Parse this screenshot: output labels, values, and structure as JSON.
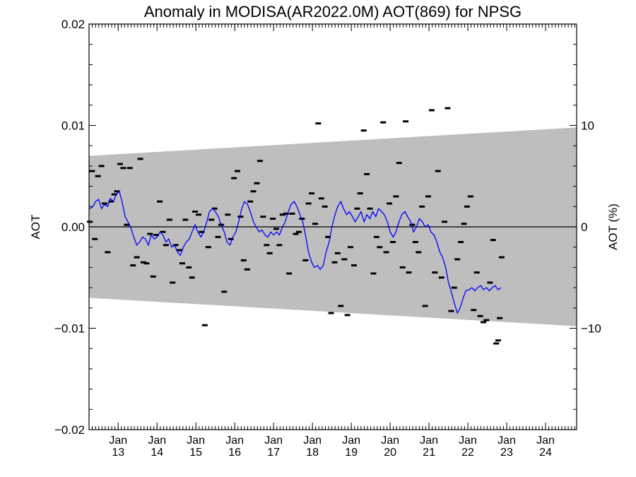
{
  "chart_data": {
    "type": "scatter",
    "title": "Anomaly in MODISA(AR2022.0M) AOT(869) for NPSG",
    "ylabel": "AOT",
    "ylabel_right": "AOT (%)",
    "xlim": [
      2012.25,
      2024.8
    ],
    "ylim": [
      -0.02,
      0.02
    ],
    "ylim_right": [
      -20,
      20
    ],
    "yticks": [
      {
        "v": 0.02,
        "label": "0.02"
      },
      {
        "v": 0.01,
        "label": "0.01"
      },
      {
        "v": 0.0,
        "label": "0.00"
      },
      {
        "v": -0.01,
        "label": "−0.01"
      },
      {
        "v": -0.02,
        "label": "−0.02"
      }
    ],
    "yticks_right": [
      {
        "v": 10,
        "label": "10"
      },
      {
        "v": 0,
        "label": "0"
      },
      {
        "v": -10,
        "label": "−10"
      }
    ],
    "xticks": [
      {
        "v": 2013.0,
        "month": "Jan",
        "year": "13"
      },
      {
        "v": 2014.0,
        "month": "Jan",
        "year": "14"
      },
      {
        "v": 2015.0,
        "month": "Jan",
        "year": "15"
      },
      {
        "v": 2016.0,
        "month": "Jan",
        "year": "16"
      },
      {
        "v": 2017.0,
        "month": "Jan",
        "year": "17"
      },
      {
        "v": 2018.0,
        "month": "Jan",
        "year": "18"
      },
      {
        "v": 2019.0,
        "month": "Jan",
        "year": "19"
      },
      {
        "v": 2020.0,
        "month": "Jan",
        "year": "20"
      },
      {
        "v": 2021.0,
        "month": "Jan",
        "year": "21"
      },
      {
        "v": 2022.0,
        "month": "Jan",
        "year": "22"
      },
      {
        "v": 2023.0,
        "month": "Jan",
        "year": "23"
      },
      {
        "v": 2024.0,
        "month": "Jan",
        "year": "24"
      }
    ],
    "band": {
      "x": [
        2012.25,
        2024.8
      ],
      "upper": [
        0.007,
        0.0098
      ],
      "lower": [
        -0.007,
        -0.0098
      ],
      "color": "#bebebe"
    },
    "zero_line": 0.0,
    "series": [
      {
        "kind": "markers",
        "color": "#000000",
        "points": [
          [
            2012.27,
            0.0005
          ],
          [
            2012.33,
            0.0055
          ],
          [
            2012.4,
            -0.0012
          ],
          [
            2012.48,
            0.005
          ],
          [
            2012.57,
            0.006
          ],
          [
            2012.65,
            0.0023
          ],
          [
            2012.73,
            -0.0025
          ],
          [
            2012.82,
            0.0025
          ],
          [
            2012.9,
            0.0032
          ],
          [
            2012.97,
            0.0035
          ],
          [
            2013.05,
            0.0062
          ],
          [
            2013.13,
            0.0058
          ],
          [
            2013.22,
            0.0002
          ],
          [
            2013.3,
            0.0058
          ],
          [
            2013.38,
            -0.0038
          ],
          [
            2013.48,
            -0.003
          ],
          [
            2013.57,
            0.0067
          ],
          [
            2013.65,
            -0.0035
          ],
          [
            2013.73,
            -0.0036
          ],
          [
            2013.82,
            -0.0007
          ],
          [
            2013.9,
            -0.0049
          ],
          [
            2013.98,
            -0.0008
          ],
          [
            2014.07,
            0.0025
          ],
          [
            2014.15,
            -0.0005
          ],
          [
            2014.23,
            -0.0018
          ],
          [
            2014.32,
            0.0007
          ],
          [
            2014.4,
            -0.0055
          ],
          [
            2014.48,
            -0.0018
          ],
          [
            2014.57,
            -0.0023
          ],
          [
            2014.65,
            -0.0036
          ],
          [
            2014.73,
            0.0007
          ],
          [
            2014.82,
            -0.004
          ],
          [
            2014.9,
            -0.005
          ],
          [
            2014.98,
            0.0015
          ],
          [
            2015.07,
            0.0012
          ],
          [
            2015.15,
            -0.0005
          ],
          [
            2015.23,
            -0.0097
          ],
          [
            2015.32,
            -0.002
          ],
          [
            2015.4,
            0.0007
          ],
          [
            2015.48,
            0.0018
          ],
          [
            2015.57,
            -0.001
          ],
          [
            2015.65,
            0.0002
          ],
          [
            2015.73,
            -0.0064
          ],
          [
            2015.82,
            0.0012
          ],
          [
            2015.9,
            -0.0012
          ],
          [
            2015.98,
            0.0048
          ],
          [
            2016.07,
            0.0055
          ],
          [
            2016.15,
            0.001
          ],
          [
            2016.23,
            -0.0033
          ],
          [
            2016.32,
            -0.0042
          ],
          [
            2016.4,
            0.0025
          ],
          [
            2016.48,
            0.0035
          ],
          [
            2016.57,
            0.0043
          ],
          [
            2016.65,
            0.0065
          ],
          [
            2016.73,
            0.001
          ],
          [
            2016.82,
            -0.0018
          ],
          [
            2016.9,
            -0.0026
          ],
          [
            2016.98,
            0.0008
          ],
          [
            2017.07,
            -0.0002
          ],
          [
            2017.15,
            -0.0018
          ],
          [
            2017.23,
            0.0012
          ],
          [
            2017.32,
            0.0013
          ],
          [
            2017.4,
            -0.0046
          ],
          [
            2017.48,
            0.0013
          ],
          [
            2017.57,
            -0.0007
          ],
          [
            2017.65,
            -0.0005
          ],
          [
            2017.73,
            0.0008
          ],
          [
            2017.82,
            -0.0033
          ],
          [
            2017.9,
            0.0023
          ],
          [
            2017.98,
            0.0033
          ],
          [
            2018.07,
            0.0003
          ],
          [
            2018.15,
            0.0102
          ],
          [
            2018.23,
            0.0028
          ],
          [
            2018.32,
            0.002
          ],
          [
            2018.4,
            -0.001
          ],
          [
            2018.48,
            -0.0085
          ],
          [
            2018.57,
            -0.0035
          ],
          [
            2018.65,
            -0.0026
          ],
          [
            2018.73,
            -0.0078
          ],
          [
            2018.82,
            -0.0032
          ],
          [
            2018.9,
            -0.0087
          ],
          [
            2018.98,
            -0.002
          ],
          [
            2019.07,
            -0.0038
          ],
          [
            2019.15,
            0.0018
          ],
          [
            2019.23,
            0.0033
          ],
          [
            2019.32,
            0.0095
          ],
          [
            2019.4,
            0.0052
          ],
          [
            2019.48,
            0.0018
          ],
          [
            2019.57,
            -0.0046
          ],
          [
            2019.65,
            -0.001
          ],
          [
            2019.73,
            -0.002
          ],
          [
            2019.82,
            0.0103
          ],
          [
            2019.9,
            -0.0025
          ],
          [
            2019.98,
            0.0023
          ],
          [
            2020.07,
            -0.0015
          ],
          [
            2020.15,
            0.003
          ],
          [
            2020.23,
            0.0063
          ],
          [
            2020.32,
            -0.004
          ],
          [
            2020.4,
            0.0104
          ],
          [
            2020.48,
            -0.0045
          ],
          [
            2020.57,
            0.0002
          ],
          [
            2020.65,
            -0.0015
          ],
          [
            2020.73,
            -0.0025
          ],
          [
            2020.82,
            0.002
          ],
          [
            2020.9,
            -0.0078
          ],
          [
            2020.98,
            0.003
          ],
          [
            2021.07,
            0.0115
          ],
          [
            2021.15,
            -0.0045
          ],
          [
            2021.23,
            0.0055
          ],
          [
            2021.32,
            -0.005
          ],
          [
            2021.4,
            0.0005
          ],
          [
            2021.48,
            0.0117
          ],
          [
            2021.57,
            -0.0083
          ],
          [
            2021.65,
            -0.006
          ],
          [
            2021.73,
            -0.0032
          ],
          [
            2021.82,
            -0.0015
          ],
          [
            2021.9,
            0.0003
          ],
          [
            2021.98,
            0.002
          ],
          [
            2022.07,
            0.003
          ],
          [
            2022.15,
            -0.0082
          ],
          [
            2022.23,
            -0.0045
          ],
          [
            2022.32,
            -0.0088
          ],
          [
            2022.4,
            -0.0094
          ],
          [
            2022.48,
            -0.0092
          ],
          [
            2022.57,
            -0.0055
          ],
          [
            2022.65,
            -0.0013
          ],
          [
            2022.73,
            -0.0115
          ],
          [
            2022.78,
            -0.0112
          ],
          [
            2022.82,
            -0.009
          ],
          [
            2022.87,
            -0.003
          ]
        ]
      },
      {
        "kind": "line",
        "color": "#0000ff",
        "points": [
          [
            2012.27,
            0.0018
          ],
          [
            2012.35,
            0.002
          ],
          [
            2012.42,
            0.0025
          ],
          [
            2012.5,
            0.0027
          ],
          [
            2012.57,
            0.0018
          ],
          [
            2012.65,
            0.0022
          ],
          [
            2012.73,
            0.002
          ],
          [
            2012.8,
            0.0028
          ],
          [
            2012.88,
            0.0025
          ],
          [
            2012.95,
            0.0032
          ],
          [
            2013.03,
            0.0035
          ],
          [
            2013.1,
            0.0025
          ],
          [
            2013.18,
            0.001
          ],
          [
            2013.25,
            0.0005
          ],
          [
            2013.32,
            0.0
          ],
          [
            2013.4,
            -0.001
          ],
          [
            2013.48,
            -0.0018
          ],
          [
            2013.55,
            -0.0015
          ],
          [
            2013.63,
            -0.001
          ],
          [
            2013.7,
            -0.0012
          ],
          [
            2013.78,
            -0.0018
          ],
          [
            2013.85,
            -0.0008
          ],
          [
            2013.93,
            -0.0012
          ],
          [
            2014.0,
            -0.001
          ],
          [
            2014.08,
            -0.0005
          ],
          [
            2014.15,
            -0.0008
          ],
          [
            2014.23,
            -0.0015
          ],
          [
            2014.3,
            -0.0012
          ],
          [
            2014.38,
            -0.002
          ],
          [
            2014.45,
            -0.0018
          ],
          [
            2014.53,
            -0.0025
          ],
          [
            2014.6,
            -0.0028
          ],
          [
            2014.68,
            -0.002
          ],
          [
            2014.75,
            -0.0015
          ],
          [
            2014.83,
            -0.0012
          ],
          [
            2014.9,
            -0.0005
          ],
          [
            2014.98,
            0.0002
          ],
          [
            2015.05,
            -0.0005
          ],
          [
            2015.13,
            -0.001
          ],
          [
            2015.2,
            -0.0005
          ],
          [
            2015.28,
            0.0005
          ],
          [
            2015.35,
            0.0015
          ],
          [
            2015.43,
            0.0018
          ],
          [
            2015.5,
            0.0015
          ],
          [
            2015.58,
            0.001
          ],
          [
            2015.65,
            0.0002
          ],
          [
            2015.73,
            -0.0005
          ],
          [
            2015.8,
            -0.0015
          ],
          [
            2015.88,
            -0.0018
          ],
          [
            2015.95,
            -0.001
          ],
          [
            2016.03,
            -0.0005
          ],
          [
            2016.1,
            0.0005
          ],
          [
            2016.18,
            0.0018
          ],
          [
            2016.25,
            0.0025
          ],
          [
            2016.33,
            0.0022
          ],
          [
            2016.4,
            0.0015
          ],
          [
            2016.48,
            0.0005
          ],
          [
            2016.55,
            0.0
          ],
          [
            2016.63,
            -0.0005
          ],
          [
            2016.7,
            -0.0003
          ],
          [
            2016.78,
            -0.0008
          ],
          [
            2016.85,
            -0.001
          ],
          [
            2016.93,
            -0.0005
          ],
          [
            2017.0,
            -0.0008
          ],
          [
            2017.08,
            -0.0005
          ],
          [
            2017.15,
            -0.0008
          ],
          [
            2017.23,
            0.0
          ],
          [
            2017.3,
            0.0005
          ],
          [
            2017.38,
            0.0015
          ],
          [
            2017.45,
            0.0022
          ],
          [
            2017.53,
            0.0025
          ],
          [
            2017.6,
            0.002
          ],
          [
            2017.68,
            0.0012
          ],
          [
            2017.75,
            0.0005
          ],
          [
            2017.83,
            -0.001
          ],
          [
            2017.9,
            -0.0025
          ],
          [
            2017.98,
            -0.0035
          ],
          [
            2018.05,
            -0.004
          ],
          [
            2018.13,
            -0.0038
          ],
          [
            2018.2,
            -0.0042
          ],
          [
            2018.28,
            -0.0038
          ],
          [
            2018.35,
            -0.0025
          ],
          [
            2018.43,
            -0.0015
          ],
          [
            2018.5,
            0.0
          ],
          [
            2018.58,
            0.0012
          ],
          [
            2018.65,
            0.002
          ],
          [
            2018.73,
            0.0025
          ],
          [
            2018.8,
            0.0018
          ],
          [
            2018.88,
            0.0012
          ],
          [
            2018.95,
            0.0015
          ],
          [
            2019.03,
            0.001
          ],
          [
            2019.1,
            0.0005
          ],
          [
            2019.18,
            0.001
          ],
          [
            2019.25,
            0.0015
          ],
          [
            2019.33,
            0.0005
          ],
          [
            2019.4,
            0.0012
          ],
          [
            2019.48,
            0.0008
          ],
          [
            2019.55,
            0.0015
          ],
          [
            2019.63,
            0.001
          ],
          [
            2019.7,
            0.0018
          ],
          [
            2019.78,
            0.0015
          ],
          [
            2019.85,
            0.0012
          ],
          [
            2019.93,
            0.0005
          ],
          [
            2020.0,
            -0.0005
          ],
          [
            2020.08,
            -0.001
          ],
          [
            2020.15,
            -0.0005
          ],
          [
            2020.23,
            0.0005
          ],
          [
            2020.3,
            0.0012
          ],
          [
            2020.38,
            0.0015
          ],
          [
            2020.45,
            0.001
          ],
          [
            2020.53,
            0.0005
          ],
          [
            2020.6,
            -0.0005
          ],
          [
            2020.68,
            0.0
          ],
          [
            2020.75,
            0.0008
          ],
          [
            2020.83,
            0.0005
          ],
          [
            2020.9,
            0.0
          ],
          [
            2020.98,
            0.0002
          ],
          [
            2021.05,
            -0.0005
          ],
          [
            2021.13,
            -0.0008
          ],
          [
            2021.2,
            -0.0015
          ],
          [
            2021.28,
            -0.0025
          ],
          [
            2021.35,
            -0.003
          ],
          [
            2021.43,
            -0.004
          ],
          [
            2021.5,
            -0.0055
          ],
          [
            2021.58,
            -0.0065
          ],
          [
            2021.65,
            -0.0075
          ],
          [
            2021.73,
            -0.0085
          ],
          [
            2021.8,
            -0.008
          ],
          [
            2021.88,
            -0.007
          ],
          [
            2021.95,
            -0.0063
          ],
          [
            2022.03,
            -0.0062
          ],
          [
            2022.1,
            -0.006
          ],
          [
            2022.18,
            -0.0063
          ],
          [
            2022.25,
            -0.006
          ],
          [
            2022.33,
            -0.0058
          ],
          [
            2022.4,
            -0.0062
          ],
          [
            2022.48,
            -0.006
          ],
          [
            2022.55,
            -0.0063
          ],
          [
            2022.63,
            -0.006
          ],
          [
            2022.7,
            -0.0058
          ],
          [
            2022.78,
            -0.0062
          ],
          [
            2022.85,
            -0.006
          ]
        ]
      }
    ]
  }
}
